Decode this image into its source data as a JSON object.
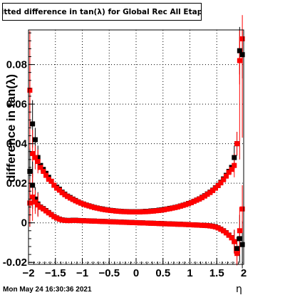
{
  "chart_data": {
    "type": "scatter",
    "title": "Fitted difference in tan(λ) for Global Rec All EtapT",
    "ylabel": "difference in tan(λ)",
    "xlabel": "η",
    "xlim": [
      -2,
      2
    ],
    "ylim": [
      -0.021,
      0.0975
    ],
    "grid": true,
    "x_ticks": [
      -2,
      -1.5,
      -1,
      -0.5,
      0,
      0.5,
      1,
      1.5,
      2
    ],
    "x_tick_labels": [
      "−2",
      "−1.5",
      "−1",
      "−0.5",
      "0",
      "0.5",
      "1",
      "1.5",
      "2"
    ],
    "y_ticks": [
      -0.02,
      0,
      0.02,
      0.04,
      0.06,
      0.08
    ],
    "y_tick_labels": [
      "-0.02",
      "0",
      "0.02",
      "0.04",
      "0.06",
      "0.08"
    ],
    "series": [
      {
        "marker": "square",
        "color": "#000000",
        "x": [
          -1.975,
          -1.925,
          -1.875,
          -1.825,
          -1.775,
          -1.725,
          -1.675,
          -1.625,
          -1.575,
          -1.525,
          -1.475,
          -1.425,
          -1.375,
          -1.325,
          -1.275,
          -1.225,
          -1.175,
          -1.125,
          -1.075,
          -1.025,
          -0.975,
          -0.925,
          -0.875,
          -0.825,
          -0.775,
          -0.725,
          -0.675,
          -0.625,
          -0.575,
          -0.525,
          -0.475,
          -0.425,
          -0.375,
          -0.325,
          -0.275,
          -0.225,
          -0.175,
          -0.125,
          -0.075,
          -0.025,
          0.025,
          0.075,
          0.125,
          0.175,
          0.225,
          0.275,
          0.325,
          0.375,
          0.425,
          0.475,
          0.525,
          0.575,
          0.625,
          0.675,
          0.725,
          0.775,
          0.825,
          0.875,
          0.925,
          0.975,
          1.025,
          1.075,
          1.125,
          1.175,
          1.225,
          1.275,
          1.325,
          1.375,
          1.425,
          1.475,
          1.525,
          1.575,
          1.625,
          1.675,
          1.725,
          1.775,
          1.825,
          1.875,
          1.925,
          1.975
        ],
        "y": [
          0.026,
          0.05,
          0.042,
          0.033,
          0.029,
          0.027,
          0.025,
          0.023,
          0.021,
          0.019,
          0.018,
          0.017,
          0.0155,
          0.0145,
          0.0135,
          0.0128,
          0.012,
          0.0113,
          0.0106,
          0.01,
          0.0095,
          0.009,
          0.0086,
          0.0082,
          0.0078,
          0.0075,
          0.0072,
          0.007,
          0.0067,
          0.0065,
          0.0063,
          0.0062,
          0.006,
          0.0059,
          0.0058,
          0.0057,
          0.0057,
          0.0056,
          0.0056,
          0.0056,
          0.0056,
          0.0056,
          0.0057,
          0.0058,
          0.0058,
          0.006,
          0.0061,
          0.0062,
          0.0064,
          0.0066,
          0.0068,
          0.007,
          0.0073,
          0.0075,
          0.0078,
          0.0081,
          0.0085,
          0.0089,
          0.0093,
          0.0098,
          0.0103,
          0.0109,
          0.0115,
          0.0121,
          0.0129,
          0.0137,
          0.0146,
          0.0155,
          0.0165,
          0.0177,
          0.019,
          0.0205,
          0.0222,
          0.024,
          0.026,
          0.028,
          0.033,
          0.04,
          0.087,
          0.085
        ]
      },
      {
        "marker": "square",
        "color": "#ff0000",
        "x": [
          -1.975,
          -1.925,
          -1.875,
          -1.825,
          -1.775,
          -1.725,
          -1.675,
          -1.625,
          -1.575,
          -1.525,
          -1.475,
          -1.425,
          -1.375,
          -1.325,
          -1.275,
          -1.225,
          -1.175,
          -1.125,
          -1.075,
          -1.025,
          -0.975,
          -0.925,
          -0.875,
          -0.825,
          -0.775,
          -0.725,
          -0.675,
          -0.625,
          -0.575,
          -0.525,
          -0.475,
          -0.425,
          -0.375,
          -0.325,
          -0.275,
          -0.225,
          -0.175,
          -0.125,
          -0.075,
          -0.025,
          0.025,
          0.075,
          0.125,
          0.175,
          0.225,
          0.275,
          0.325,
          0.375,
          0.425,
          0.475,
          0.525,
          0.575,
          0.625,
          0.675,
          0.725,
          0.775,
          0.825,
          0.875,
          0.925,
          0.975,
          1.025,
          1.075,
          1.125,
          1.175,
          1.225,
          1.275,
          1.325,
          1.375,
          1.425,
          1.475,
          1.525,
          1.575,
          1.625,
          1.675,
          1.725,
          1.775,
          1.825,
          1.875,
          1.925,
          1.975
        ],
        "y": [
          0.067,
          0.035,
          0.033,
          0.031,
          0.028,
          0.026,
          0.024,
          0.022,
          0.021,
          0.019,
          0.0175,
          0.0165,
          0.0152,
          0.0142,
          0.0133,
          0.0125,
          0.0118,
          0.0111,
          0.0105,
          0.0099,
          0.0094,
          0.0089,
          0.0085,
          0.0081,
          0.0077,
          0.0074,
          0.0071,
          0.0068,
          0.0066,
          0.0064,
          0.0062,
          0.0061,
          0.0059,
          0.0058,
          0.0057,
          0.0056,
          0.0056,
          0.0055,
          0.0055,
          0.0055,
          0.0055,
          0.0055,
          0.0056,
          0.0056,
          0.0057,
          0.0058,
          0.0059,
          0.0061,
          0.0062,
          0.0064,
          0.0066,
          0.0069,
          0.0071,
          0.0074,
          0.0077,
          0.008,
          0.0084,
          0.0088,
          0.0092,
          0.0097,
          0.0102,
          0.0108,
          0.0114,
          0.012,
          0.0127,
          0.0135,
          0.0144,
          0.0153,
          0.0163,
          0.0175,
          0.0188,
          0.0202,
          0.0218,
          0.0236,
          0.0255,
          0.027,
          0.029,
          0.04,
          0.082,
          0.093
        ]
      },
      {
        "marker": "square",
        "color": "#000000",
        "x": [
          -1.975,
          -1.925,
          -1.875,
          -1.825,
          -1.775,
          -1.725,
          -1.675,
          -1.625,
          -1.575,
          -1.525,
          -1.475,
          -1.425,
          -1.375,
          -1.325,
          -1.275,
          -1.225,
          -1.175,
          -1.125,
          -1.075,
          -1.025,
          -0.975,
          -0.925,
          -0.875,
          -0.825,
          -0.775,
          -0.725,
          -0.675,
          -0.625,
          -0.575,
          -0.525,
          -0.475,
          -0.425,
          -0.375,
          -0.325,
          -0.275,
          -0.225,
          -0.175,
          -0.125,
          -0.075,
          -0.025,
          0.025,
          0.075,
          0.125,
          0.175,
          0.225,
          0.275,
          0.325,
          0.375,
          0.425,
          0.475,
          0.525,
          0.575,
          0.625,
          0.675,
          0.725,
          0.775,
          0.825,
          0.875,
          0.925,
          0.975,
          1.025,
          1.075,
          1.125,
          1.175,
          1.225,
          1.275,
          1.325,
          1.375,
          1.425,
          1.475,
          1.525,
          1.575,
          1.625,
          1.675,
          1.725,
          1.775,
          1.825,
          1.875,
          1.925,
          1.975
        ],
        "y": [
          0.01,
          0.019,
          0.012,
          0.0095,
          0.008,
          0.0072,
          0.0062,
          0.0052,
          0.0042,
          0.0032,
          0.0025,
          0.0019,
          0.0015,
          0.0013,
          0.0012,
          0.0012,
          0.0013,
          0.0013,
          0.0012,
          0.0011,
          0.0011,
          0.001,
          0.001,
          0.0009,
          0.0009,
          0.0008,
          0.0008,
          0.0007,
          0.0007,
          0.0006,
          0.0006,
          0.0005,
          0.0005,
          0.0004,
          0.0004,
          0.0003,
          0.0003,
          0.0002,
          0.0002,
          0.0001,
          0.0001,
          0.0,
          0.0,
          -0.0001,
          -0.0001,
          -0.0002,
          -0.0002,
          -0.0003,
          -0.0003,
          -0.0004,
          -0.0004,
          -0.0005,
          -0.0005,
          -0.0006,
          -0.0006,
          -0.0007,
          -0.0007,
          -0.0008,
          -0.0008,
          -0.0009,
          -0.001,
          -0.001,
          -0.0011,
          -0.0012,
          -0.0012,
          -0.0013,
          -0.0014,
          -0.0015,
          -0.0017,
          -0.002,
          -0.0025,
          -0.0032,
          -0.004,
          -0.005,
          -0.0062,
          -0.0075,
          -0.0095,
          -0.013,
          -0.008,
          -0.011
        ]
      },
      {
        "marker": "square",
        "color": "#ff0000",
        "x": [
          -1.975,
          -1.925,
          -1.875,
          -1.825,
          -1.775,
          -1.725,
          -1.675,
          -1.625,
          -1.575,
          -1.525,
          -1.475,
          -1.425,
          -1.375,
          -1.325,
          -1.275,
          -1.225,
          -1.175,
          -1.125,
          -1.075,
          -1.025,
          -0.975,
          -0.925,
          -0.875,
          -0.825,
          -0.775,
          -0.725,
          -0.675,
          -0.625,
          -0.575,
          -0.525,
          -0.475,
          -0.425,
          -0.375,
          -0.325,
          -0.275,
          -0.225,
          -0.175,
          -0.125,
          -0.075,
          -0.025,
          0.025,
          0.075,
          0.125,
          0.175,
          0.225,
          0.275,
          0.325,
          0.375,
          0.425,
          0.475,
          0.525,
          0.575,
          0.625,
          0.675,
          0.725,
          0.775,
          0.825,
          0.875,
          0.925,
          0.975,
          1.025,
          1.075,
          1.125,
          1.175,
          1.225,
          1.275,
          1.325,
          1.375,
          1.425,
          1.475,
          1.525,
          1.575,
          1.625,
          1.675,
          1.725,
          1.775,
          1.825,
          1.875,
          1.925,
          1.975
        ],
        "y": [
          0.01,
          0.013,
          0.0105,
          0.009,
          0.0078,
          0.007,
          0.006,
          0.005,
          0.0041,
          0.0031,
          0.0024,
          0.0018,
          0.0014,
          0.0012,
          0.0011,
          0.0011,
          0.0012,
          0.0012,
          0.0011,
          0.0011,
          0.001,
          0.001,
          0.0009,
          0.0009,
          0.0008,
          0.0008,
          0.0007,
          0.0007,
          0.0006,
          0.0006,
          0.0005,
          0.0005,
          0.0004,
          0.0004,
          0.0003,
          0.0003,
          0.0002,
          0.0002,
          0.0001,
          0.0001,
          0.0,
          0.0,
          -0.0001,
          -0.0001,
          -0.0002,
          -0.0002,
          -0.0003,
          -0.0003,
          -0.0004,
          -0.0004,
          -0.0005,
          -0.0005,
          -0.0006,
          -0.0006,
          -0.0007,
          -0.0007,
          -0.0008,
          -0.0008,
          -0.0009,
          -0.0009,
          -0.001,
          -0.0011,
          -0.0011,
          -0.0012,
          -0.0013,
          -0.0013,
          -0.0014,
          -0.0016,
          -0.0018,
          -0.0021,
          -0.0026,
          -0.0033,
          -0.0041,
          -0.0051,
          -0.0063,
          -0.0076,
          -0.0095,
          -0.0155,
          -0.004,
          0.007
        ]
      }
    ]
  },
  "footer": {
    "timestamp": "Mon May 24 16:30:36 2021"
  }
}
